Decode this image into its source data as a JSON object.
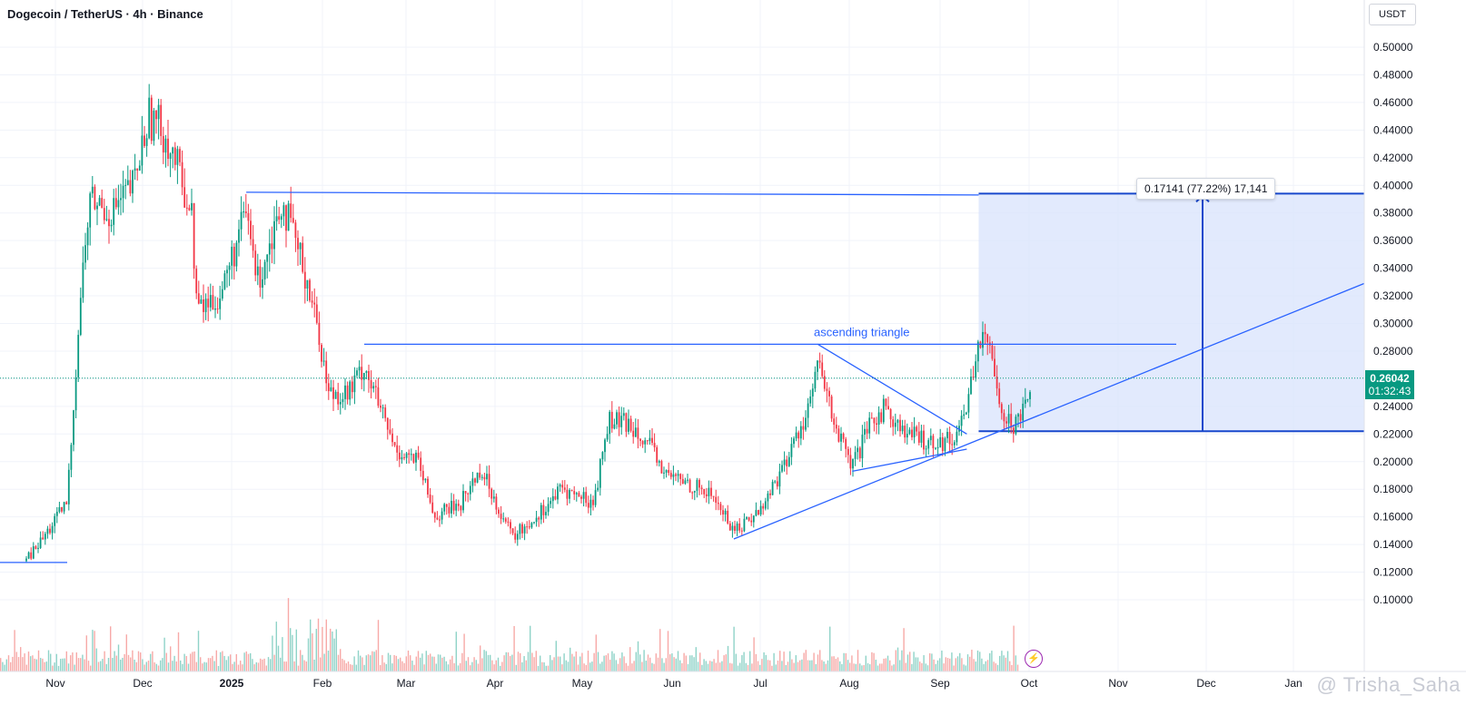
{
  "header": {
    "title": "Dogecoin / TetherUS · 4h · Binance"
  },
  "price_scale": {
    "currency": "USDT",
    "ticks": [
      "0.50000",
      "0.48000",
      "0.46000",
      "0.44000",
      "0.42000",
      "0.40000",
      "0.38000",
      "0.36000",
      "0.34000",
      "0.32000",
      "0.30000",
      "0.28000",
      "0.26000",
      "0.24000",
      "0.22000",
      "0.20000",
      "0.18000",
      "0.16000",
      "0.14000",
      "0.12000",
      "0.10000"
    ]
  },
  "time_scale": {
    "ticks": [
      "Nov",
      "Dec",
      "2025",
      "Feb",
      "Mar",
      "Apr",
      "May",
      "Jun",
      "Jul",
      "Aug",
      "Sep",
      "Oct",
      "Nov",
      "Dec",
      "Jan"
    ]
  },
  "current": {
    "price": "0.26042",
    "countdown": "01:32:43"
  },
  "measure": {
    "label": "0.17141 (77.22%) 17,141"
  },
  "annotation": {
    "label": "ascending triangle"
  },
  "watermark": "@ Trisha_Saha",
  "colors": {
    "up": "#089981",
    "down": "#f23645",
    "accent": "#2962ff",
    "zone": "#dbe5fc"
  },
  "chart_data": {
    "type": "candlestick",
    "title": "Dogecoin / TetherUS · 4h · Binance",
    "ylabel": "USDT",
    "ylim": [
      0.09,
      0.51
    ],
    "x_ticks": [
      "Nov",
      "Dec",
      "2025",
      "Feb",
      "Mar",
      "Apr",
      "May",
      "Jun",
      "Jul",
      "Aug",
      "Sep",
      "Oct",
      "Nov",
      "Dec",
      "Jan"
    ],
    "series": [
      {
        "values": [
          [
            "2024-10-22",
            0.128
          ],
          [
            "2024-10-28",
            0.145
          ],
          [
            "2024-11-05",
            0.17
          ],
          [
            "2024-11-10",
            0.33
          ],
          [
            "2024-11-13",
            0.39
          ],
          [
            "2024-11-20",
            0.38
          ],
          [
            "2024-11-28",
            0.4
          ],
          [
            "2024-12-03",
            0.45
          ],
          [
            "2024-12-08",
            0.44
          ],
          [
            "2024-12-12",
            0.42
          ],
          [
            "2024-12-18",
            0.38
          ],
          [
            "2024-12-20",
            0.31
          ],
          [
            "2024-12-28",
            0.32
          ],
          [
            "2025-01-06",
            0.38
          ],
          [
            "2025-01-10",
            0.33
          ],
          [
            "2025-01-18",
            0.39
          ],
          [
            "2025-01-27",
            0.33
          ],
          [
            "2025-01-31",
            0.29
          ],
          [
            "2025-02-03",
            0.25
          ],
          [
            "2025-02-10",
            0.25
          ],
          [
            "2025-02-15",
            0.27
          ],
          [
            "2025-02-25",
            0.21
          ],
          [
            "2025-03-05",
            0.2
          ],
          [
            "2025-03-11",
            0.16
          ],
          [
            "2025-03-20",
            0.17
          ],
          [
            "2025-03-27",
            0.195
          ],
          [
            "2025-04-07",
            0.145
          ],
          [
            "2025-04-15",
            0.16
          ],
          [
            "2025-04-24",
            0.18
          ],
          [
            "2025-05-05",
            0.17
          ],
          [
            "2025-05-10",
            0.23
          ],
          [
            "2025-05-20",
            0.225
          ],
          [
            "2025-05-30",
            0.19
          ],
          [
            "2025-06-06",
            0.185
          ],
          [
            "2025-06-15",
            0.175
          ],
          [
            "2025-06-22",
            0.15
          ],
          [
            "2025-07-01",
            0.165
          ],
          [
            "2025-07-10",
            0.2
          ],
          [
            "2025-07-18",
            0.24
          ],
          [
            "2025-07-21",
            0.27
          ],
          [
            "2025-07-28",
            0.22
          ],
          [
            "2025-08-02",
            0.195
          ],
          [
            "2025-08-08",
            0.225
          ],
          [
            "2025-08-13",
            0.24
          ],
          [
            "2025-08-20",
            0.22
          ],
          [
            "2025-08-28",
            0.215
          ],
          [
            "2025-09-05",
            0.215
          ],
          [
            "2025-09-10",
            0.24
          ],
          [
            "2025-09-14",
            0.29
          ],
          [
            "2025-09-19",
            0.275
          ],
          [
            "2025-09-22",
            0.235
          ],
          [
            "2025-09-26",
            0.225
          ],
          [
            "2025-10-02",
            0.26042
          ]
        ]
      }
    ],
    "levels": {
      "resistance_top": 0.395,
      "triangle_resistance": 0.285,
      "current": 0.26042,
      "measure_start": 0.222,
      "measure_end": 0.394
    },
    "annotations": [
      "ascending triangle",
      "0.17141 (77.22%) 17,141"
    ]
  }
}
